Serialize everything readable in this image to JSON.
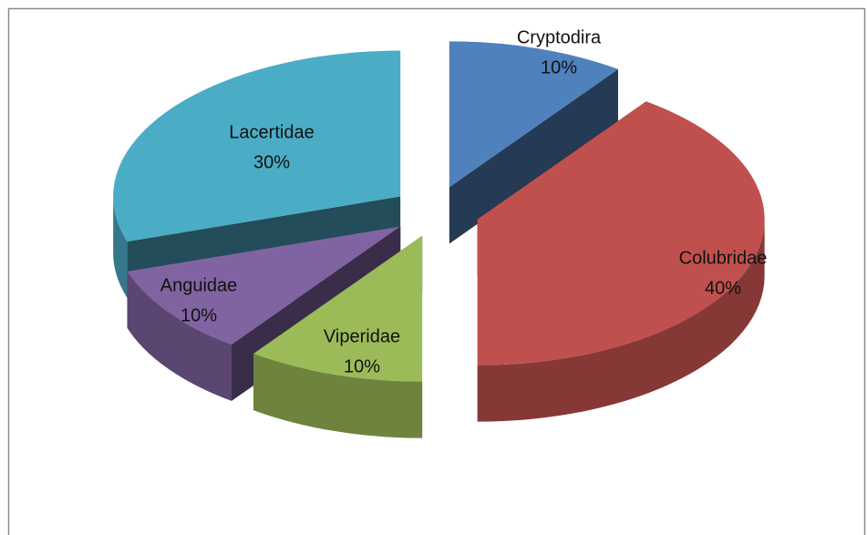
{
  "chart_data": {
    "type": "pie3d",
    "categories": [
      "Cryptodira",
      "Colubridae",
      "Viperidae",
      "Anguidae",
      "Lacertidae"
    ],
    "values": [
      10,
      40,
      10,
      10,
      30
    ],
    "value_labels": [
      "10%",
      "40%",
      "10%",
      "10%",
      "30%"
    ],
    "colors": [
      "#4f81bd",
      "#c0504d",
      "#9bbb59",
      "#8064a2",
      "#4bacc6"
    ],
    "exploded": true
  }
}
